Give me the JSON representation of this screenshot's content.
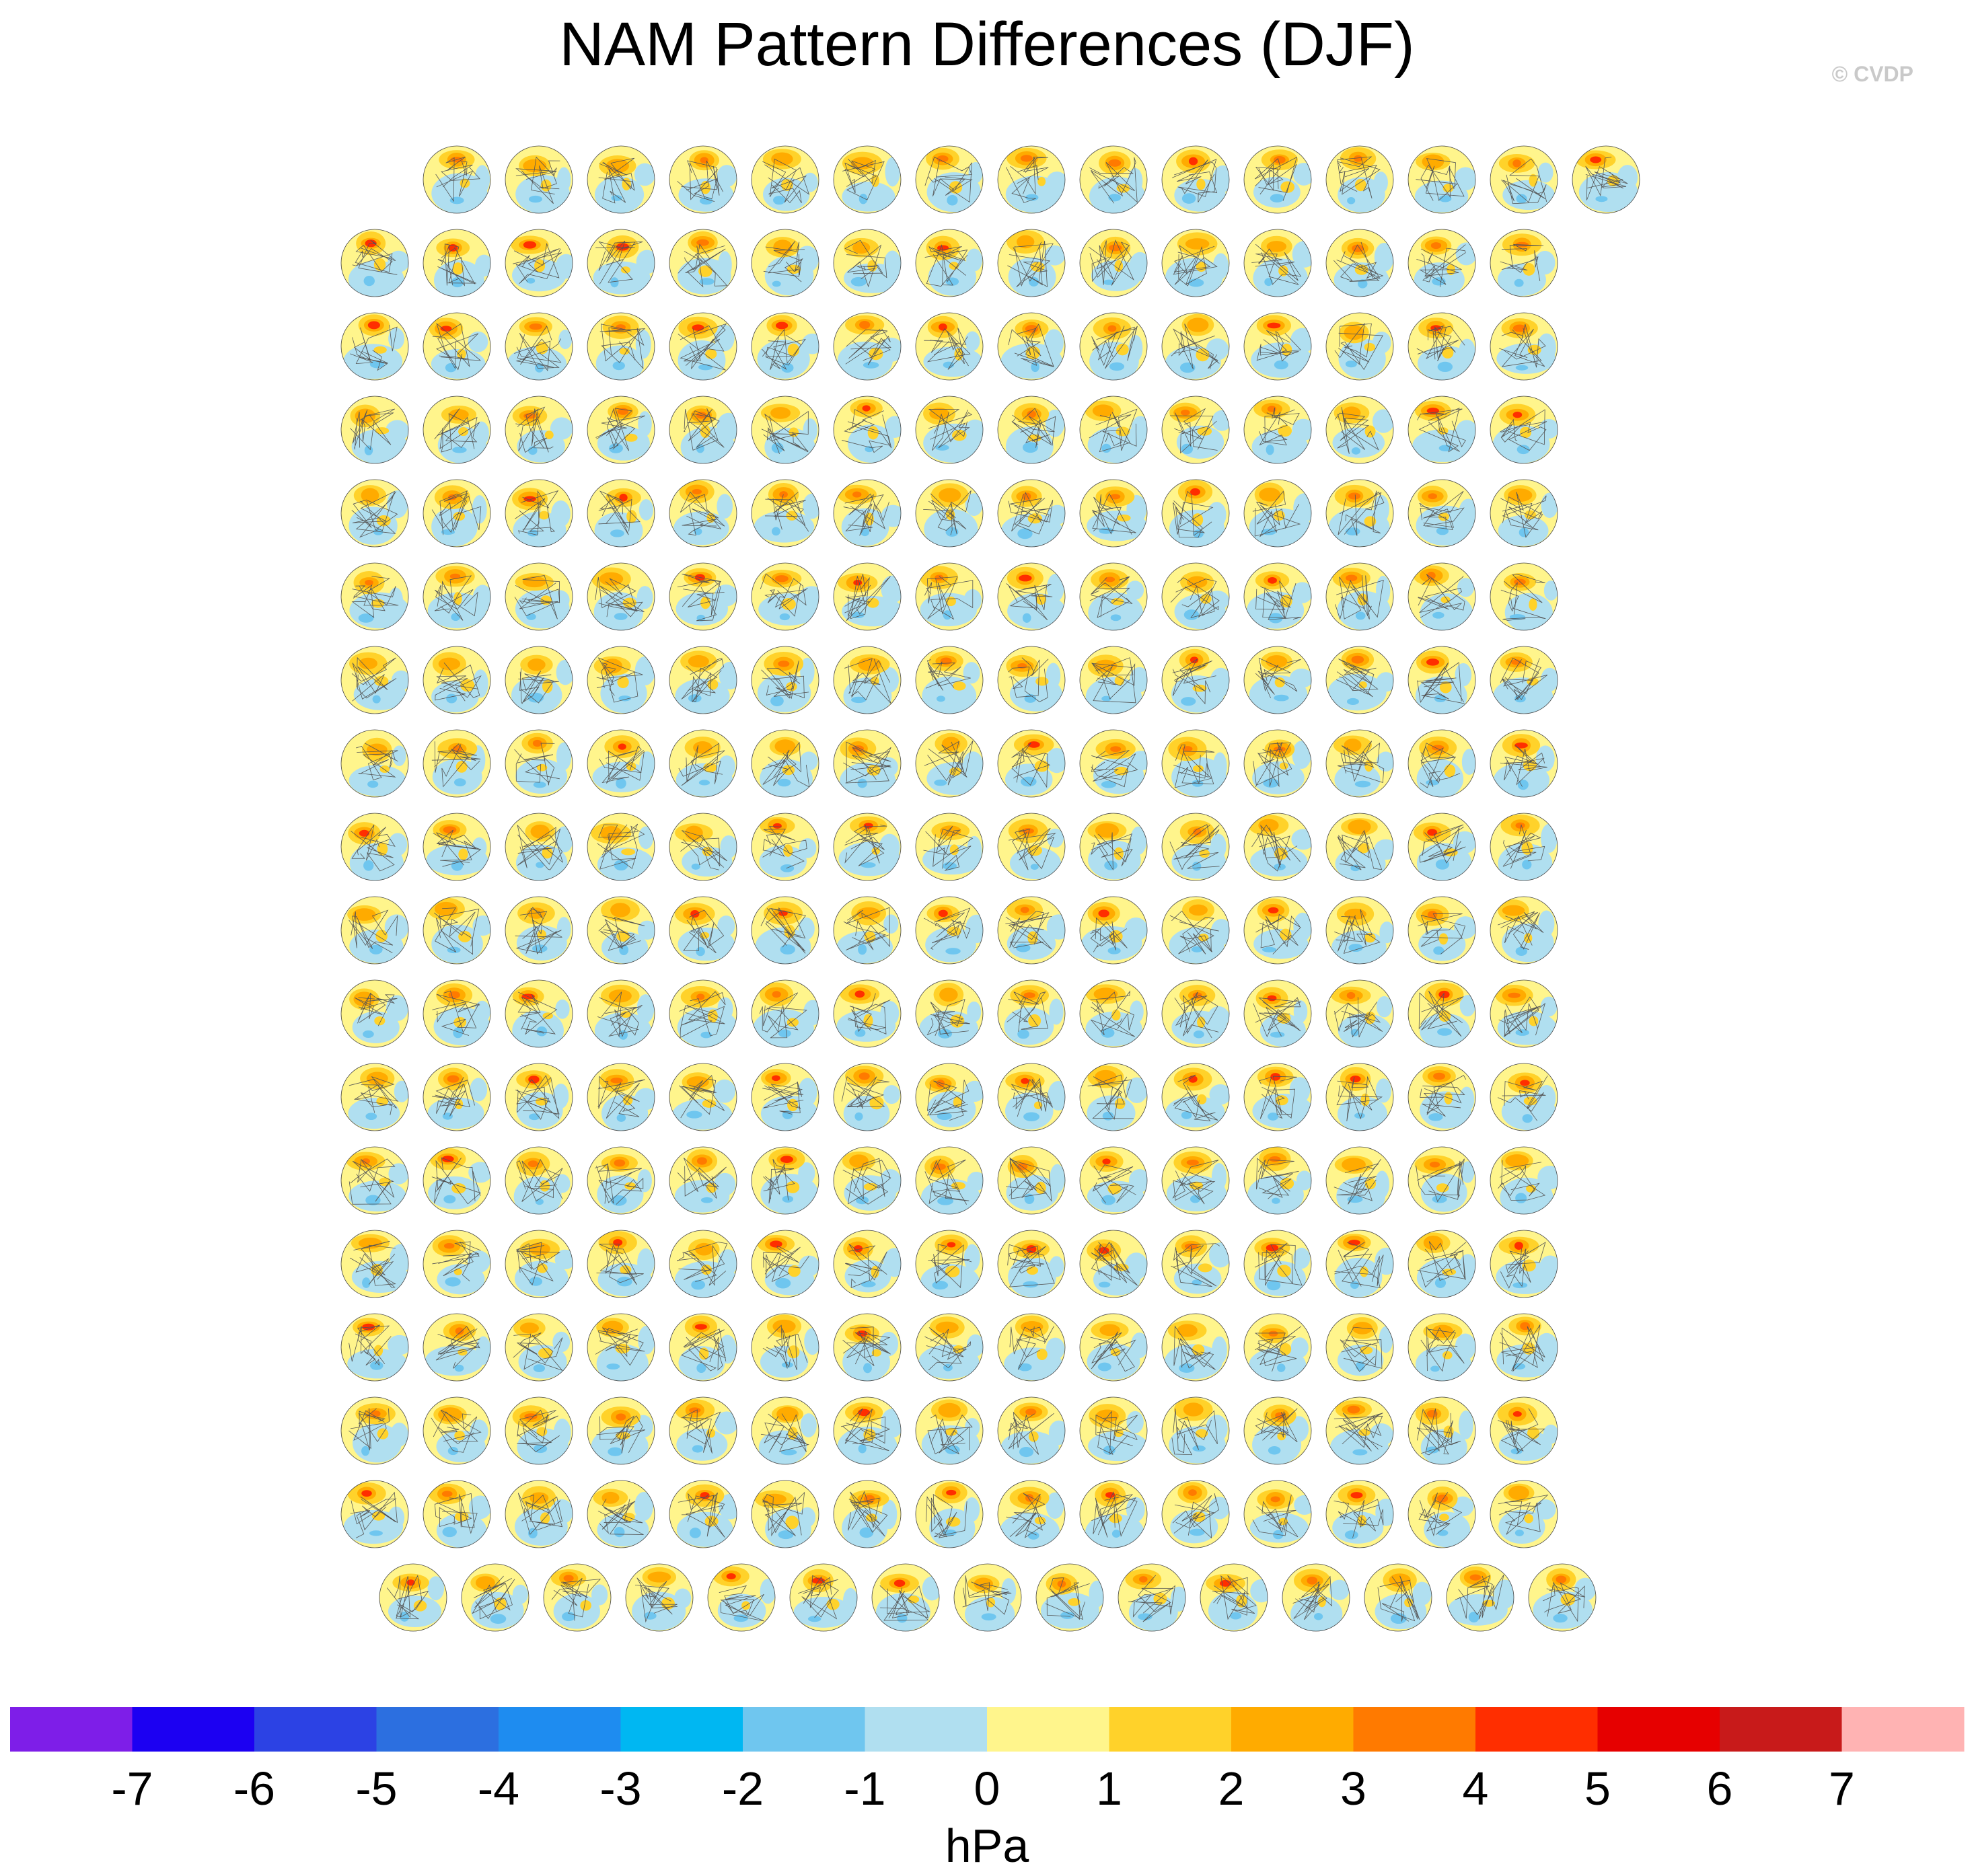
{
  "title": "NAM Pattern Differences (DJF)",
  "copyright": "© CVDP",
  "chart_data": {
    "type": "heatmap",
    "title": "NAM Pattern Differences (DJF)",
    "description_units": "hPa",
    "grid": {
      "rows": 18,
      "columns": 15,
      "first_row_panels": 15,
      "last_row_panels": 15
    },
    "colorbar": {
      "label": "hPa",
      "tick_labels": [
        "-7",
        "-6",
        "-5",
        "-4",
        "-3",
        "-2",
        "-1",
        "0",
        "1",
        "2",
        "3",
        "4",
        "5",
        "6",
        "7"
      ],
      "levels": [
        -7,
        -6,
        -5,
        -4,
        -3,
        -2,
        -1,
        0,
        1,
        2,
        3,
        4,
        5,
        6,
        7
      ],
      "colors": [
        "#7e1ee8",
        "#1c00f2",
        "#2c42e4",
        "#2c6fe0",
        "#1e8cf0",
        "#00b7f2",
        "#6fc6ef",
        "#b0dff0",
        "#fff58c",
        "#ffd22a",
        "#ffab00",
        "#ff7a00",
        "#ff2e00",
        "#e60000",
        "#c81a1a",
        "#ffb3b3"
      ]
    }
  }
}
